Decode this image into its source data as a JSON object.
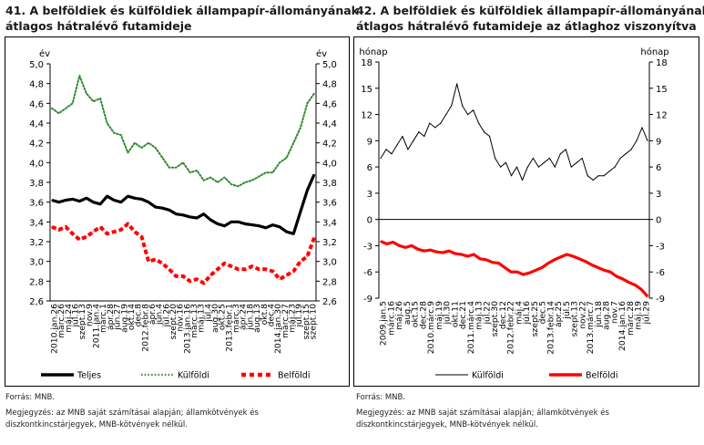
{
  "chart_data": [
    {
      "type": "line",
      "title": "41. A belföldiek és külföldiek állampapír-állományának átlagos hátralévő futamideje",
      "title_lines": [
        "41. A belföldiek és külföldiek állampapír-állományának",
        "átlagos hátralévő futamideje"
      ],
      "ylabel_left": "év",
      "ylabel_right": "év",
      "ylim": [
        2.6,
        5.0
      ],
      "yticks": [
        "2,6",
        "2,8",
        "3,0",
        "3,2",
        "3,4",
        "3,6",
        "3,8",
        "4,0",
        "4,2",
        "4,4",
        "4,6",
        "4,8",
        "5,0"
      ],
      "x_ticks": [
        "2010.jan.26",
        "márc.26",
        "máj.24",
        "júl.16",
        "szept.13",
        "nov.9",
        "2011.jan.4",
        "márc.1",
        "ápr.28",
        "jún.27",
        "aug.19",
        "okt.14",
        "dec.8",
        "2012.febr.8",
        "ápr.6",
        "jún.4",
        "júl.26",
        "szept.20",
        "nov.16",
        "2013.jan.16",
        "márc.13",
        "máj.13",
        "júl.4",
        "aug.30",
        "okt.25",
        "2013.febr.1",
        "márc.3",
        "ápr.24",
        "jún.18",
        "aug.13",
        "okt.8",
        "dec.4",
        "2014.jan.30",
        "márc.27",
        "máj.23",
        "júl.19",
        "szept.15",
        "szept.10"
      ],
      "series": [
        {
          "name": "Teljes",
          "style": "solid-thick",
          "color": "#000000",
          "values": [
            3.62,
            3.6,
            3.62,
            3.63,
            3.61,
            3.64,
            3.6,
            3.58,
            3.66,
            3.62,
            3.6,
            3.66,
            3.64,
            3.63,
            3.6,
            3.55,
            3.54,
            3.52,
            3.48,
            3.47,
            3.45,
            3.44,
            3.48,
            3.42,
            3.38,
            3.36,
            3.4,
            3.4,
            3.38,
            3.37,
            3.36,
            3.34,
            3.37,
            3.35,
            3.3,
            3.28,
            3.5,
            3.72,
            3.88
          ]
        },
        {
          "name": "Külföldi",
          "style": "dotted",
          "color": "#2d8a2d",
          "values": [
            4.55,
            4.5,
            4.55,
            4.6,
            4.88,
            4.7,
            4.62,
            4.65,
            4.4,
            4.3,
            4.28,
            4.1,
            4.2,
            4.15,
            4.2,
            4.15,
            4.05,
            3.95,
            3.95,
            4.0,
            3.9,
            3.92,
            3.82,
            3.85,
            3.8,
            3.85,
            3.78,
            3.76,
            3.8,
            3.82,
            3.86,
            3.9,
            3.9,
            4.0,
            4.05,
            4.2,
            4.35,
            4.6,
            4.7
          ]
        },
        {
          "name": "Belföldi",
          "style": "dashed-thick",
          "color": "#ff0000",
          "values": [
            3.35,
            3.32,
            3.35,
            3.28,
            3.22,
            3.25,
            3.3,
            3.35,
            3.28,
            3.3,
            3.32,
            3.38,
            3.3,
            3.25,
            3.0,
            3.02,
            2.98,
            2.92,
            2.85,
            2.85,
            2.8,
            2.82,
            2.78,
            2.86,
            2.92,
            2.98,
            2.95,
            2.92,
            2.92,
            2.95,
            2.92,
            2.92,
            2.9,
            2.82,
            2.86,
            2.9,
            3.0,
            3.05,
            3.24
          ]
        }
      ]
    },
    {
      "type": "line",
      "title": "42. A belföldiek és külföldiek állampapír-állományának átlagos hátralévő futamideje az átlaghoz viszonyítva",
      "title_lines": [
        "42. A belföldiek és külföldiek állampapír-állományának",
        "átlagos hátralévő futamideje az átlaghoz viszonyítva"
      ],
      "ylabel_left": "hónap",
      "ylabel_right": "hónap",
      "ylim": [
        -9,
        18
      ],
      "yticks": [
        "-9",
        "-6",
        "-3",
        "0",
        "3",
        "6",
        "9",
        "12",
        "15",
        "18"
      ],
      "x_ticks": [
        "2009.jan.5",
        "márc.16",
        "máj.26",
        "aug.5",
        "okt.15",
        "dec.28",
        "2010.márc.9",
        "máj.19",
        "júl.30",
        "okt.11",
        "dec.21",
        "2011.márc.4",
        "máj.13",
        "júl.22",
        "szept.30",
        "dec.12",
        "2012.febr.22",
        "máj.4",
        "júl.16",
        "szept.25",
        "dec.5",
        "2013.febr.14",
        "ápr.25",
        "júl.5",
        "szept.13",
        "nov.22",
        "2013.márc.7",
        "jún.18",
        "aug.28",
        "nov.7",
        "2014.jan.16",
        "márc.28",
        "máj.19",
        "júl.29"
      ],
      "series": [
        {
          "name": "Külföldi",
          "style": "solid-thin",
          "color": "#000000",
          "values": [
            7,
            8,
            7.5,
            8.5,
            9.5,
            8,
            9,
            10,
            9.5,
            11,
            10.5,
            11,
            12,
            13,
            15.5,
            13,
            12,
            12.5,
            11,
            10,
            9.5,
            7,
            6,
            6.5,
            5,
            6,
            4.5,
            6,
            7,
            6,
            6.5,
            7,
            6,
            7.5,
            8,
            6,
            6.5,
            7,
            5,
            4.5,
            5,
            5,
            5.5,
            6,
            7,
            7.5,
            8,
            9,
            10.5,
            9
          ]
        },
        {
          "name": "Belföldi",
          "style": "solid-thick",
          "color": "#ff0000",
          "values": [
            -2.5,
            -2.8,
            -2.6,
            -3.0,
            -3.2,
            -3.0,
            -3.4,
            -3.6,
            -3.5,
            -3.7,
            -3.8,
            -3.6,
            -3.9,
            -4.0,
            -4.2,
            -4.0,
            -4.5,
            -4.6,
            -4.9,
            -5.0,
            -5.5,
            -6.0,
            -6.0,
            -6.3,
            -6.1,
            -5.8,
            -5.5,
            -5.0,
            -4.6,
            -4.3,
            -4.0,
            -4.2,
            -4.5,
            -4.8,
            -5.2,
            -5.5,
            -5.8,
            -6.0,
            -6.5,
            -6.8,
            -7.2,
            -7.5,
            -8.0,
            -8.8
          ]
        }
      ]
    }
  ],
  "left_legend": [
    {
      "label": "Teljes",
      "color": "#000000",
      "style": "solid-thick"
    },
    {
      "label": "Külföldi",
      "color": "#2d8a2d",
      "style": "dotted"
    },
    {
      "label": "Belföldi",
      "color": "#ff0000",
      "style": "dashed-thick"
    }
  ],
  "right_legend": [
    {
      "label": "Külföldi",
      "color": "#000000",
      "style": "solid-thin"
    },
    {
      "label": "Belföldi",
      "color": "#ff0000",
      "style": "solid-thick"
    }
  ],
  "left_source": "Forrás: MNB.",
  "left_note_lines": [
    "Megjegyzés: az MNB saját számításai alapján; államkötvények és",
    "diszkontkincstárjegyek, MNB-kötvények nélkül."
  ],
  "right_source": "Forrás: MNB.",
  "right_note_lines": [
    "Megjegyzés: az MNB saját számításai alapján; államkötvények és",
    "diszkontkincstárjegyek, MNB-kötvények nélkül."
  ]
}
